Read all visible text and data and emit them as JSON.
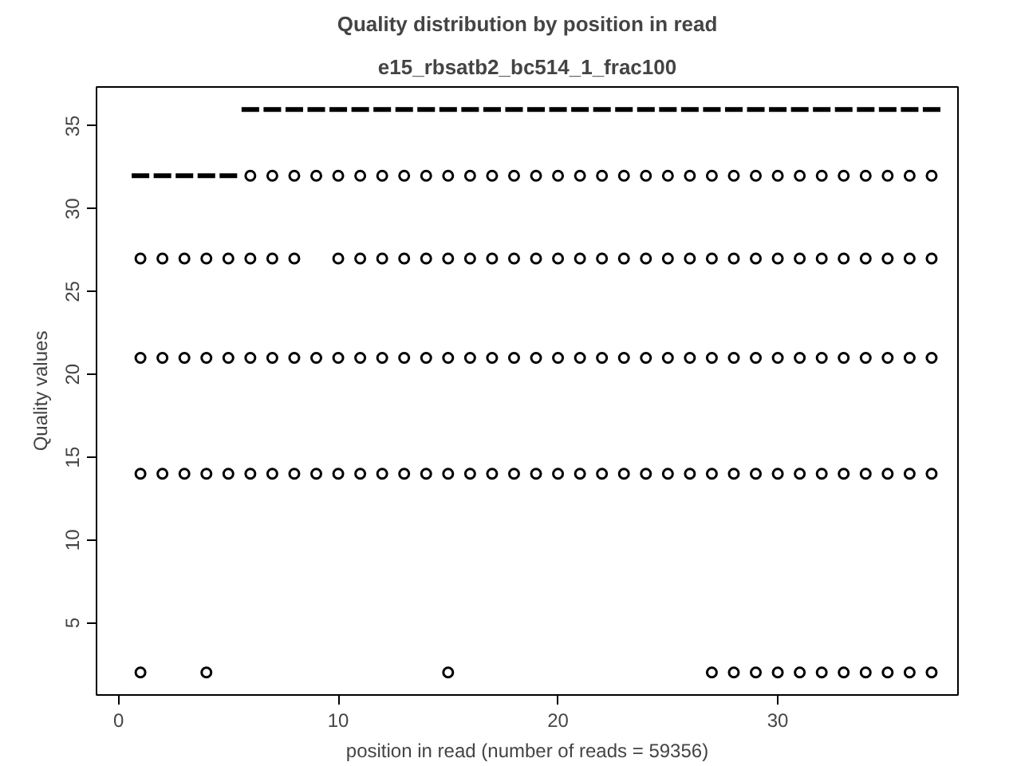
{
  "chart_data": {
    "type": "box",
    "title": "Quality distribution by position in read",
    "subtitle": "e15_rbsatb2_bc514_1_frac100",
    "xlabel": "position in read (number of reads = 59356)",
    "ylabel": "Quality values",
    "x": [
      1,
      2,
      3,
      4,
      5,
      6,
      7,
      8,
      9,
      10,
      11,
      12,
      13,
      14,
      15,
      16,
      17,
      18,
      19,
      20,
      21,
      22,
      23,
      24,
      25,
      26,
      27,
      28,
      29,
      30,
      31,
      32,
      33,
      34,
      35,
      36,
      37
    ],
    "boxes": [
      {
        "low": 32,
        "q1": 32,
        "median": 32,
        "q3": 32,
        "high": 32,
        "outliers": [
          27,
          21,
          14,
          2
        ]
      },
      {
        "low": 32,
        "q1": 32,
        "median": 32,
        "q3": 32,
        "high": 32,
        "outliers": [
          27,
          21,
          14
        ]
      },
      {
        "low": 32,
        "q1": 32,
        "median": 32,
        "q3": 32,
        "high": 32,
        "outliers": [
          27,
          21,
          14
        ]
      },
      {
        "low": 32,
        "q1": 32,
        "median": 32,
        "q3": 32,
        "high": 32,
        "outliers": [
          27,
          21,
          14,
          2
        ]
      },
      {
        "low": 32,
        "q1": 32,
        "median": 32,
        "q3": 32,
        "high": 32,
        "outliers": [
          27,
          21,
          14
        ]
      },
      {
        "low": 36,
        "q1": 36,
        "median": 36,
        "q3": 36,
        "high": 36,
        "outliers": [
          32,
          27,
          21,
          14
        ]
      },
      {
        "low": 36,
        "q1": 36,
        "median": 36,
        "q3": 36,
        "high": 36,
        "outliers": [
          32,
          27,
          21,
          14
        ]
      },
      {
        "low": 36,
        "q1": 36,
        "median": 36,
        "q3": 36,
        "high": 36,
        "outliers": [
          32,
          27,
          21,
          14
        ]
      },
      {
        "low": 36,
        "q1": 36,
        "median": 36,
        "q3": 36,
        "high": 36,
        "outliers": [
          32,
          21,
          14
        ]
      },
      {
        "low": 36,
        "q1": 36,
        "median": 36,
        "q3": 36,
        "high": 36,
        "outliers": [
          32,
          27,
          21,
          14
        ]
      },
      {
        "low": 36,
        "q1": 36,
        "median": 36,
        "q3": 36,
        "high": 36,
        "outliers": [
          32,
          27,
          21,
          14
        ]
      },
      {
        "low": 36,
        "q1": 36,
        "median": 36,
        "q3": 36,
        "high": 36,
        "outliers": [
          32,
          27,
          21,
          14
        ]
      },
      {
        "low": 36,
        "q1": 36,
        "median": 36,
        "q3": 36,
        "high": 36,
        "outliers": [
          32,
          27,
          21,
          14
        ]
      },
      {
        "low": 36,
        "q1": 36,
        "median": 36,
        "q3": 36,
        "high": 36,
        "outliers": [
          32,
          27,
          21,
          14
        ]
      },
      {
        "low": 36,
        "q1": 36,
        "median": 36,
        "q3": 36,
        "high": 36,
        "outliers": [
          32,
          27,
          21,
          14,
          2
        ]
      },
      {
        "low": 36,
        "q1": 36,
        "median": 36,
        "q3": 36,
        "high": 36,
        "outliers": [
          32,
          27,
          21,
          14
        ]
      },
      {
        "low": 36,
        "q1": 36,
        "median": 36,
        "q3": 36,
        "high": 36,
        "outliers": [
          32,
          27,
          21,
          14
        ]
      },
      {
        "low": 36,
        "q1": 36,
        "median": 36,
        "q3": 36,
        "high": 36,
        "outliers": [
          32,
          27,
          21,
          14
        ]
      },
      {
        "low": 36,
        "q1": 36,
        "median": 36,
        "q3": 36,
        "high": 36,
        "outliers": [
          32,
          27,
          21,
          14
        ]
      },
      {
        "low": 36,
        "q1": 36,
        "median": 36,
        "q3": 36,
        "high": 36,
        "outliers": [
          32,
          27,
          21,
          14
        ]
      },
      {
        "low": 36,
        "q1": 36,
        "median": 36,
        "q3": 36,
        "high": 36,
        "outliers": [
          32,
          27,
          21,
          14
        ]
      },
      {
        "low": 36,
        "q1": 36,
        "median": 36,
        "q3": 36,
        "high": 36,
        "outliers": [
          32,
          27,
          21,
          14
        ]
      },
      {
        "low": 36,
        "q1": 36,
        "median": 36,
        "q3": 36,
        "high": 36,
        "outliers": [
          32,
          27,
          21,
          14
        ]
      },
      {
        "low": 36,
        "q1": 36,
        "median": 36,
        "q3": 36,
        "high": 36,
        "outliers": [
          32,
          27,
          21,
          14
        ]
      },
      {
        "low": 36,
        "q1": 36,
        "median": 36,
        "q3": 36,
        "high": 36,
        "outliers": [
          32,
          27,
          21,
          14
        ]
      },
      {
        "low": 36,
        "q1": 36,
        "median": 36,
        "q3": 36,
        "high": 36,
        "outliers": [
          32,
          27,
          21,
          14
        ]
      },
      {
        "low": 36,
        "q1": 36,
        "median": 36,
        "q3": 36,
        "high": 36,
        "outliers": [
          32,
          27,
          21,
          14,
          2
        ]
      },
      {
        "low": 36,
        "q1": 36,
        "median": 36,
        "q3": 36,
        "high": 36,
        "outliers": [
          32,
          27,
          21,
          14,
          2
        ]
      },
      {
        "low": 36,
        "q1": 36,
        "median": 36,
        "q3": 36,
        "high": 36,
        "outliers": [
          32,
          27,
          21,
          14,
          2
        ]
      },
      {
        "low": 36,
        "q1": 36,
        "median": 36,
        "q3": 36,
        "high": 36,
        "outliers": [
          32,
          27,
          21,
          14,
          2
        ]
      },
      {
        "low": 36,
        "q1": 36,
        "median": 36,
        "q3": 36,
        "high": 36,
        "outliers": [
          32,
          27,
          21,
          14,
          2
        ]
      },
      {
        "low": 36,
        "q1": 36,
        "median": 36,
        "q3": 36,
        "high": 36,
        "outliers": [
          32,
          27,
          21,
          14,
          2
        ]
      },
      {
        "low": 36,
        "q1": 36,
        "median": 36,
        "q3": 36,
        "high": 36,
        "outliers": [
          32,
          27,
          21,
          14,
          2
        ]
      },
      {
        "low": 36,
        "q1": 36,
        "median": 36,
        "q3": 36,
        "high": 36,
        "outliers": [
          32,
          27,
          21,
          14,
          2
        ]
      },
      {
        "low": 36,
        "q1": 36,
        "median": 36,
        "q3": 36,
        "high": 36,
        "outliers": [
          32,
          27,
          21,
          14,
          2
        ]
      },
      {
        "low": 36,
        "q1": 36,
        "median": 36,
        "q3": 36,
        "high": 36,
        "outliers": [
          32,
          27,
          21,
          14,
          2
        ]
      },
      {
        "low": 36,
        "q1": 36,
        "median": 36,
        "q3": 36,
        "high": 36,
        "outliers": [
          32,
          27,
          21,
          14,
          2
        ]
      }
    ],
    "color": "#000000",
    "xlim": [
      -1,
      38.2
    ],
    "ylim": [
      0.64,
      37.36
    ],
    "xticks": [
      0,
      10,
      20,
      30
    ],
    "yticks": [
      5,
      10,
      15,
      20,
      25,
      30,
      35
    ]
  }
}
